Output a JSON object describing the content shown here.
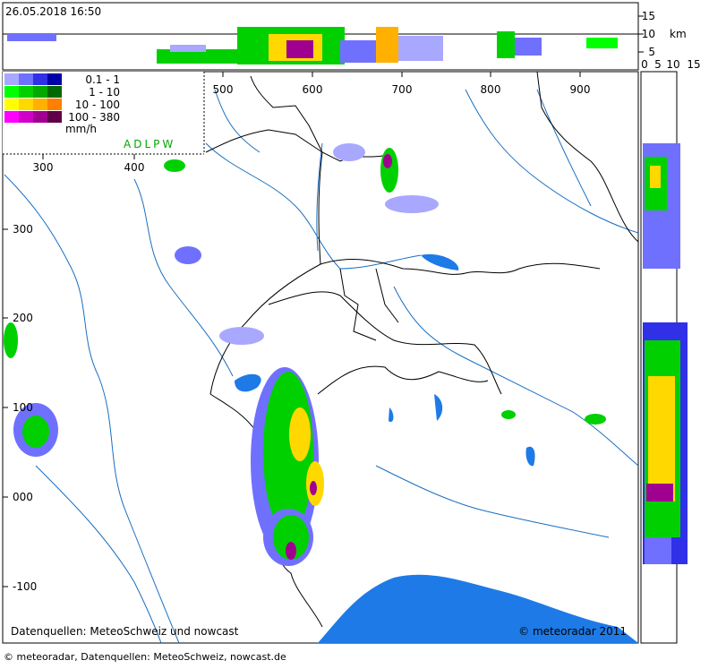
{
  "header": {
    "timestamp": "26.05.2018 16:50"
  },
  "height_axis": {
    "ticks": [
      "15",
      "10",
      "5"
    ],
    "unit": "km",
    "bottom_ticks": [
      "0",
      "5",
      "10",
      "15"
    ]
  },
  "legend": {
    "rows": [
      {
        "label": "0.1 -    1",
        "colors": [
          "#a8a8ff",
          "#7070ff",
          "#3030e8",
          "#0000a8"
        ]
      },
      {
        "label": "1 -  10",
        "colors": [
          "#00ff00",
          "#00d000",
          "#00a800",
          "#006800"
        ]
      },
      {
        "label": "10 - 100",
        "colors": [
          "#ffff00",
          "#ffd800",
          "#ffb000",
          "#ff8000"
        ]
      },
      {
        "label": "100 - 380",
        "colors": [
          "#ff00ff",
          "#d000c8",
          "#a00090",
          "#600048"
        ]
      }
    ],
    "unit": "mm/h",
    "stations": "ADLPW"
  },
  "map": {
    "x_labels_top": [
      "500",
      "600",
      "700",
      "800",
      "900"
    ],
    "x_labels_left": [
      "300",
      "400"
    ],
    "y_labels": [
      "300",
      "200",
      "100",
      "000",
      "-100"
    ]
  },
  "footer": {
    "left": "Datenquellen: MeteoSchweiz und nowcast",
    "right": "© meteoradar 2011",
    "credits": "© meteoradar, Datenquellen: MeteoSchweiz, nowcast.de"
  }
}
